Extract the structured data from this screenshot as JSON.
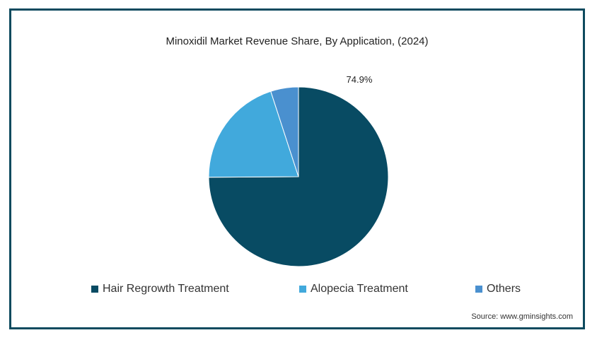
{
  "chart_data": {
    "type": "pie",
    "title": "Minoxidil Market Revenue Share, By Application, (2024)",
    "slices": [
      {
        "name": "Hair Regrowth Treatment",
        "value": 74.9,
        "color": "#084b63",
        "label": "74.9%"
      },
      {
        "name": "Alopecia Treatment",
        "value": 20.1,
        "color": "#41a9dc",
        "label": ""
      },
      {
        "name": "Others",
        "value": 5.0,
        "color": "#4a90cf",
        "label": ""
      }
    ],
    "legend_position": "bottom"
  },
  "source": "Source: www.gminsights.com",
  "colors": {
    "border": "#0d4a5e"
  }
}
